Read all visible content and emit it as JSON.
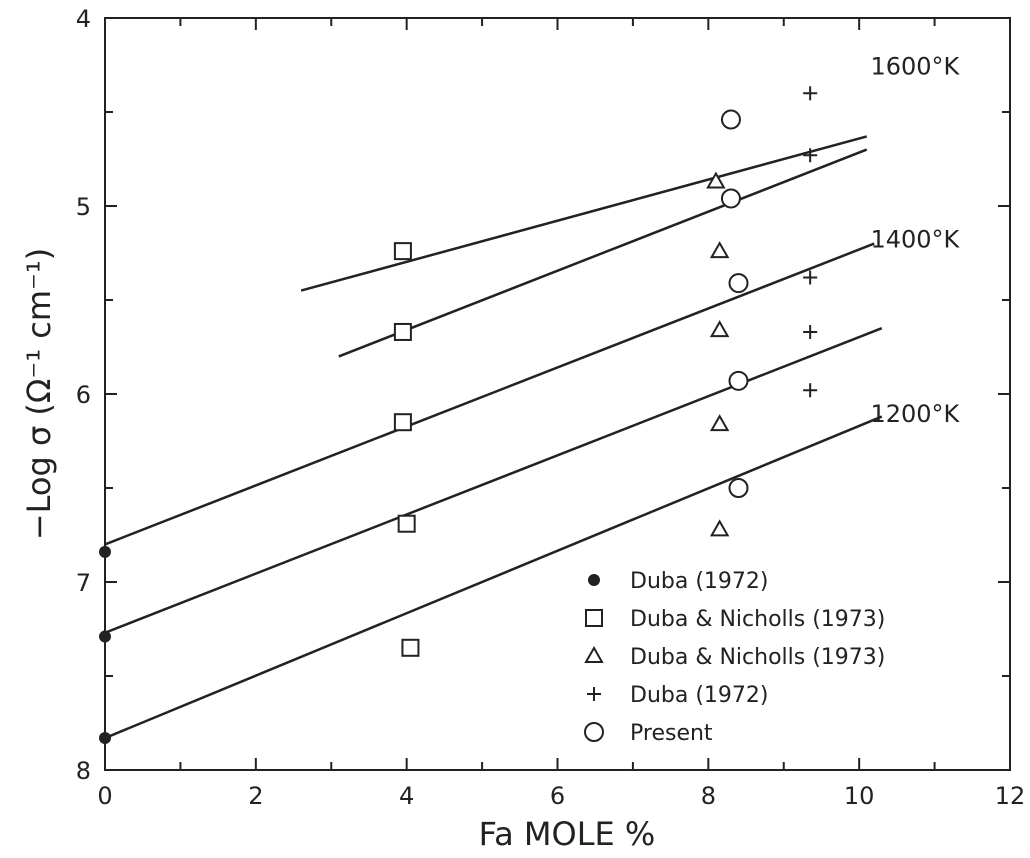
{
  "chart_data": {
    "type": "scatter",
    "xlabel": "Fa MOLE %",
    "ylabel": "−Log σ  (Ω⁻¹ cm⁻¹)",
    "xlim": [
      0,
      12
    ],
    "ylim": [
      4,
      8
    ],
    "y_inverted": true,
    "x_ticks": [
      0,
      2,
      4,
      6,
      8,
      10,
      12
    ],
    "y_ticks": [
      4,
      5,
      6,
      7,
      8
    ],
    "x_minor_step": 1,
    "y_minor_step": 0.5,
    "grid": false,
    "legend_position": "bottom-right",
    "fit_lines": [
      {
        "x": [
          2.6,
          10.1
        ],
        "y": [
          5.45,
          4.63
        ]
      },
      {
        "x": [
          3.1,
          10.1
        ],
        "y": [
          5.8,
          4.7
        ]
      },
      {
        "x": [
          0,
          10.2
        ],
        "y": [
          6.8,
          5.2
        ]
      },
      {
        "x": [
          0,
          10.3
        ],
        "y": [
          7.27,
          5.65
        ]
      },
      {
        "x": [
          0,
          10.3
        ],
        "y": [
          7.83,
          6.12
        ]
      }
    ],
    "curve_labels": [
      {
        "text": "1600°K",
        "x": 10.15,
        "y": 4.3
      },
      {
        "text": "1400°K",
        "x": 10.15,
        "y": 5.22
      },
      {
        "text": "1200°K",
        "x": 10.15,
        "y": 6.15
      }
    ],
    "series": [
      {
        "name": "Duba (1972)",
        "marker": "filled-dot",
        "points": [
          [
            0,
            6.84
          ],
          [
            0,
            7.29
          ],
          [
            0,
            7.83
          ]
        ]
      },
      {
        "name": "Duba & Nicholls (1973)",
        "marker": "square",
        "points": [
          [
            3.95,
            5.24
          ],
          [
            3.95,
            5.67
          ],
          [
            3.95,
            6.15
          ],
          [
            4.0,
            6.69
          ],
          [
            4.05,
            7.35
          ]
        ]
      },
      {
        "name": "Duba & Nicholls (1973)",
        "marker": "triangle",
        "points": [
          [
            8.1,
            4.87
          ],
          [
            8.15,
            5.24
          ],
          [
            8.15,
            5.66
          ],
          [
            8.15,
            6.16
          ],
          [
            8.15,
            6.72
          ]
        ]
      },
      {
        "name": "Duba (1972)",
        "marker": "plus",
        "points": [
          [
            9.35,
            4.4
          ],
          [
            9.35,
            4.73
          ],
          [
            9.35,
            5.38
          ],
          [
            9.35,
            5.67
          ],
          [
            9.35,
            5.98
          ]
        ]
      },
      {
        "name": "Present",
        "marker": "circle",
        "points": [
          [
            8.3,
            4.54
          ],
          [
            8.3,
            4.96
          ],
          [
            8.4,
            5.41
          ],
          [
            8.4,
            5.93
          ],
          [
            8.4,
            6.5
          ]
        ]
      }
    ]
  }
}
